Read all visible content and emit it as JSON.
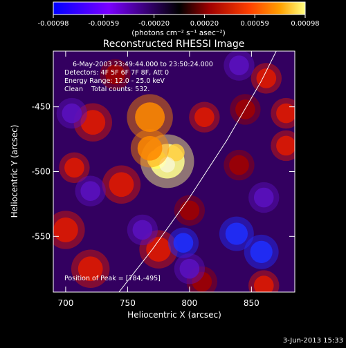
{
  "colorbar": {
    "ticks": [
      "-0.00098",
      "-0.00059",
      "-0.00020",
      "0.00020",
      "0.00059",
      "0.00098"
    ],
    "units": "(photons cm⁻² s⁻¹ asec⁻²)",
    "colors": [
      "#0000ff",
      "#7a00ff",
      "#000000",
      "#a00000",
      "#ff4000",
      "#ffa000",
      "#ffff80"
    ]
  },
  "plot": {
    "title": "Reconstructed RHESSI Image",
    "xlabel": "Heliocentric X (arcsec)",
    "ylabel": "Heliocentric Y (arcsec)",
    "xlim": [
      690,
      885
    ],
    "ylim": [
      -593,
      -407
    ],
    "xticks": [
      "700",
      "750",
      "800",
      "850"
    ],
    "yticks": [
      "-450",
      "-500",
      "-550"
    ],
    "xtick_values": [
      700,
      750,
      800,
      850
    ],
    "ytick_values": [
      -450,
      -500,
      -550
    ]
  },
  "info": {
    "line1": "6-May-2003 23:49:44.000 to 23:50:24.000",
    "line2": "Detectors: 4F 5F 6F 7F 8F, Att 0",
    "line3": "Energy Range: 12.0 - 25.0 keV",
    "line4": "Clean    Total counts: 532."
  },
  "peak": {
    "label": "Position of Peak = [784,-495]",
    "x": 784,
    "y": -495
  },
  "footer": {
    "date": "3-Jun-2013 15:33"
  },
  "limb": [
    [
      743,
      -593
    ],
    [
      770,
      -560
    ],
    [
      800,
      -520
    ],
    [
      830,
      -476
    ],
    [
      858,
      -430
    ],
    [
      870,
      -407
    ]
  ],
  "sources": [
    {
      "x": 782,
      "y": -492,
      "s": 14,
      "a": 1.0
    },
    {
      "x": 768,
      "y": -482,
      "s": 10,
      "a": 0.7
    },
    {
      "x": 768,
      "y": -458,
      "s": 12,
      "a": 0.6
    },
    {
      "x": 722,
      "y": -462,
      "s": 10,
      "a": 0.55
    },
    {
      "x": 707,
      "y": -497,
      "s": 8,
      "a": 0.5
    },
    {
      "x": 812,
      "y": -458,
      "s": 8,
      "a": 0.55
    },
    {
      "x": 845,
      "y": -452,
      "s": 8,
      "a": 0.4
    },
    {
      "x": 862,
      "y": -428,
      "s": 8,
      "a": 0.45
    },
    {
      "x": 878,
      "y": -455,
      "s": 8,
      "a": 0.55
    },
    {
      "x": 878,
      "y": -480,
      "s": 8,
      "a": 0.45
    },
    {
      "x": 745,
      "y": -510,
      "s": 10,
      "a": 0.45
    },
    {
      "x": 700,
      "y": -545,
      "s": 10,
      "a": 0.55
    },
    {
      "x": 720,
      "y": -575,
      "s": 10,
      "a": 0.5
    },
    {
      "x": 775,
      "y": -560,
      "s": 10,
      "a": 0.45
    },
    {
      "x": 810,
      "y": -585,
      "s": 8,
      "a": 0.4
    },
    {
      "x": 860,
      "y": -588,
      "s": 8,
      "a": 0.45
    },
    {
      "x": 800,
      "y": -530,
      "s": 8,
      "a": 0.35
    },
    {
      "x": 840,
      "y": -495,
      "s": 8,
      "a": 0.35
    },
    {
      "x": 740,
      "y": -425,
      "s": 8,
      "a": 0.35
    },
    {
      "x": 838,
      "y": -548,
      "s": 9,
      "a": -0.45
    },
    {
      "x": 858,
      "y": -562,
      "s": 9,
      "a": -0.45
    },
    {
      "x": 795,
      "y": -555,
      "s": 8,
      "a": -0.4
    },
    {
      "x": 762,
      "y": -545,
      "s": 8,
      "a": -0.35
    },
    {
      "x": 720,
      "y": -515,
      "s": 8,
      "a": -0.35
    },
    {
      "x": 800,
      "y": -575,
      "s": 8,
      "a": -0.3
    },
    {
      "x": 860,
      "y": -520,
      "s": 8,
      "a": -0.3
    },
    {
      "x": 705,
      "y": -455,
      "s": 8,
      "a": -0.25
    },
    {
      "x": 840,
      "y": -418,
      "s": 8,
      "a": -0.25
    }
  ]
}
